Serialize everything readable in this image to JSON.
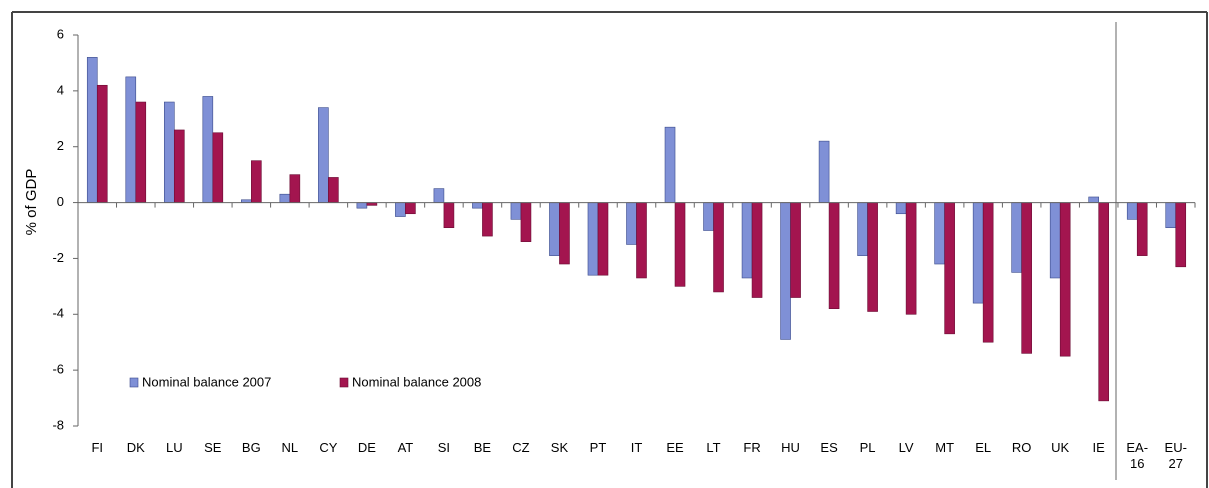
{
  "chart_data": {
    "type": "bar",
    "y_label": "% of GDP",
    "categories": [
      "FI",
      "DK",
      "LU",
      "SE",
      "BG",
      "NL",
      "CY",
      "DE",
      "AT",
      "SI",
      "BE",
      "CZ",
      "SK",
      "PT",
      "IT",
      "EE",
      "LT",
      "FR",
      "HU",
      "ES",
      "PL",
      "LV",
      "MT",
      "EL",
      "RO",
      "UK",
      "IE",
      "EA-16",
      "EU-27"
    ],
    "series": [
      {
        "name": "Nominal balance 2007",
        "color": "#7f90d6",
        "values": [
          5.2,
          4.5,
          3.6,
          3.8,
          0.1,
          0.3,
          3.4,
          -0.2,
          -0.5,
          0.5,
          -0.2,
          -0.6,
          -1.9,
          -2.6,
          -1.5,
          2.7,
          -1.0,
          -2.7,
          -4.9,
          2.2,
          -1.9,
          -0.4,
          -2.2,
          -3.6,
          -2.5,
          -2.7,
          0.2,
          -0.6,
          -0.9
        ]
      },
      {
        "name": "Nominal balance 2008",
        "color": "#a3154f",
        "values": [
          4.2,
          3.6,
          2.6,
          2.5,
          1.5,
          1.0,
          0.9,
          -0.1,
          -0.4,
          -0.9,
          -1.2,
          -1.4,
          -2.2,
          -2.6,
          -2.7,
          -3.0,
          -3.2,
          -3.4,
          -3.4,
          -3.8,
          -3.9,
          -4.0,
          -4.7,
          -5.0,
          -5.4,
          -5.5,
          -7.1,
          -1.9,
          -2.3
        ]
      }
    ],
    "ylim": [
      -8,
      6
    ],
    "yticks": [
      -8,
      -6,
      -4,
      -2,
      0,
      2,
      4,
      6
    ],
    "legend": "lower left"
  }
}
